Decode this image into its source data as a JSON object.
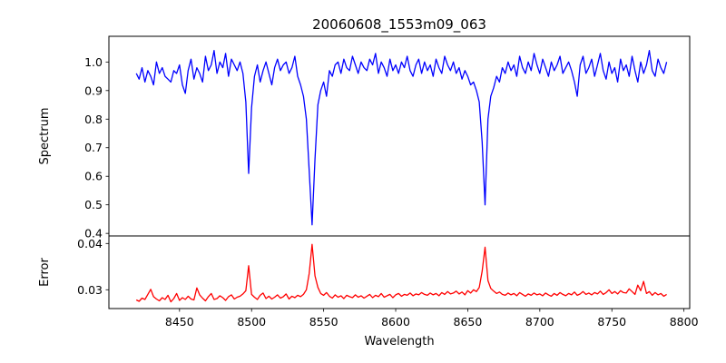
{
  "chart_data": [
    {
      "type": "line",
      "title": "20060608_1553m09_063",
      "xlabel": "",
      "ylabel": "Spectrum",
      "xlim": [
        8401,
        8804
      ],
      "ylim": [
        0.391,
        1.09
      ],
      "yticks": [
        "0.4",
        "0.5",
        "0.6",
        "0.7",
        "0.8",
        "0.9",
        "1.0"
      ],
      "grid": false,
      "series": [
        {
          "name": "Spectrum",
          "color": "#0000ff",
          "x_start": 8420,
          "x_step": 2,
          "values": [
            0.96,
            0.94,
            0.98,
            0.93,
            0.97,
            0.95,
            0.92,
            1.0,
            0.96,
            0.98,
            0.95,
            0.94,
            0.93,
            0.97,
            0.96,
            0.99,
            0.92,
            0.89,
            0.97,
            1.01,
            0.94,
            0.98,
            0.96,
            0.93,
            1.02,
            0.97,
            0.99,
            1.04,
            0.96,
            1.0,
            0.98,
            1.03,
            0.95,
            1.01,
            0.99,
            0.97,
            1.0,
            0.96,
            0.86,
            0.61,
            0.84,
            0.95,
            0.99,
            0.93,
            0.97,
            1.0,
            0.96,
            0.92,
            0.98,
            1.01,
            0.97,
            0.99,
            1.0,
            0.96,
            0.98,
            1.02,
            0.95,
            0.92,
            0.88,
            0.8,
            0.62,
            0.43,
            0.66,
            0.85,
            0.9,
            0.93,
            0.88,
            0.97,
            0.95,
            0.99,
            1.0,
            0.96,
            1.01,
            0.98,
            0.97,
            1.02,
            0.99,
            0.96,
            1.0,
            0.98,
            0.97,
            1.01,
            0.99,
            1.03,
            0.96,
            1.0,
            0.98,
            0.95,
            1.01,
            0.97,
            0.99,
            0.96,
            1.0,
            0.98,
            1.02,
            0.97,
            0.95,
            0.99,
            1.01,
            0.96,
            1.0,
            0.97,
            0.99,
            0.95,
            1.01,
            0.98,
            0.96,
            1.02,
            0.99,
            0.97,
            1.0,
            0.96,
            0.98,
            0.94,
            0.97,
            0.95,
            0.92,
            0.93,
            0.9,
            0.86,
            0.72,
            0.5,
            0.8,
            0.88,
            0.91,
            0.95,
            0.93,
            0.98,
            0.96,
            1.0,
            0.97,
            0.99,
            0.95,
            1.02,
            0.98,
            0.96,
            1.0,
            0.97,
            1.03,
            0.99,
            0.96,
            1.01,
            0.98,
            0.95,
            1.0,
            0.97,
            0.99,
            1.02,
            0.96,
            0.98,
            1.0,
            0.97,
            0.93,
            0.88,
            0.99,
            1.02,
            0.96,
            0.98,
            1.01,
            0.95,
            0.99,
            1.03,
            0.97,
            0.94,
            1.0,
            0.96,
            0.98,
            0.93,
            1.01,
            0.97,
            0.99,
            0.95,
            1.02,
            0.97,
            0.93,
            1.0,
            0.96,
            0.99,
            1.04,
            0.97,
            0.95,
            1.01,
            0.98,
            0.96,
            1.0
          ]
        }
      ]
    },
    {
      "type": "line",
      "title": "",
      "xlabel": "Wavelength",
      "ylabel": "Error",
      "xlim": [
        8401,
        8804
      ],
      "ylim": [
        0.02594,
        0.04163
      ],
      "xticks": [
        "8450",
        "8500",
        "8550",
        "8600",
        "8650",
        "8700",
        "8750",
        "8800"
      ],
      "yticks": [
        "0.03",
        "0.04"
      ],
      "grid": false,
      "series": [
        {
          "name": "Error",
          "color": "#ff0000",
          "x_start": 8420,
          "x_step": 2,
          "values": [
            0.0278,
            0.0275,
            0.0282,
            0.0279,
            0.029,
            0.0301,
            0.0285,
            0.028,
            0.0276,
            0.0283,
            0.0279,
            0.0288,
            0.0274,
            0.0281,
            0.0292,
            0.0277,
            0.0283,
            0.0279,
            0.0286,
            0.028,
            0.0278,
            0.0304,
            0.0289,
            0.0282,
            0.0276,
            0.0285,
            0.0292,
            0.0279,
            0.0281,
            0.0287,
            0.0283,
            0.0277,
            0.0285,
            0.0289,
            0.028,
            0.0284,
            0.0286,
            0.0291,
            0.0298,
            0.0352,
            0.029,
            0.0284,
            0.0279,
            0.0288,
            0.0293,
            0.0281,
            0.0286,
            0.028,
            0.0284,
            0.0289,
            0.0282,
            0.0285,
            0.0291,
            0.028,
            0.0286,
            0.0283,
            0.0288,
            0.0285,
            0.029,
            0.03,
            0.0335,
            0.0398,
            0.033,
            0.0305,
            0.0292,
            0.0288,
            0.0294,
            0.0286,
            0.0282,
            0.0289,
            0.0284,
            0.0287,
            0.0281,
            0.0288,
            0.0285,
            0.0283,
            0.0289,
            0.0284,
            0.0287,
            0.0282,
            0.0286,
            0.029,
            0.0283,
            0.0288,
            0.0285,
            0.0292,
            0.0284,
            0.0287,
            0.029,
            0.0283,
            0.0289,
            0.0292,
            0.0286,
            0.029,
            0.0288,
            0.0293,
            0.0287,
            0.0291,
            0.0289,
            0.0294,
            0.029,
            0.0288,
            0.0293,
            0.0289,
            0.0292,
            0.0287,
            0.0294,
            0.029,
            0.0296,
            0.0291,
            0.0293,
            0.0297,
            0.0291,
            0.0295,
            0.0289,
            0.0298,
            0.0293,
            0.03,
            0.0296,
            0.0305,
            0.034,
            0.0392,
            0.032,
            0.0303,
            0.0297,
            0.0292,
            0.0295,
            0.029,
            0.0288,
            0.0293,
            0.0289,
            0.0292,
            0.0287,
            0.0294,
            0.029,
            0.0286,
            0.0291,
            0.0288,
            0.0293,
            0.0289,
            0.0291,
            0.0287,
            0.0293,
            0.0289,
            0.0286,
            0.0292,
            0.0288,
            0.0294,
            0.029,
            0.0287,
            0.0292,
            0.0289,
            0.0295,
            0.0288,
            0.0291,
            0.0296,
            0.029,
            0.0293,
            0.0289,
            0.0294,
            0.0291,
            0.0297,
            0.029,
            0.0294,
            0.03,
            0.0292,
            0.0296,
            0.0291,
            0.0298,
            0.0294,
            0.0293,
            0.0302,
            0.0296,
            0.029,
            0.031,
            0.0298,
            0.0318,
            0.0292,
            0.0296,
            0.0288,
            0.0294,
            0.0289,
            0.0292,
            0.0286,
            0.029
          ]
        }
      ]
    }
  ]
}
